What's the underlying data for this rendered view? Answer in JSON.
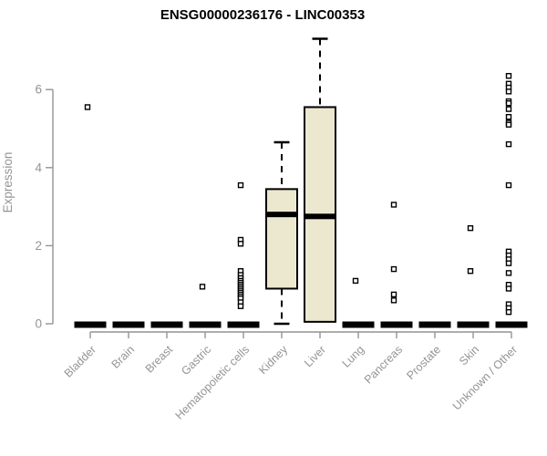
{
  "chart_data": {
    "type": "box",
    "title": "ENSG00000236176 - LINC00353",
    "ylabel": "Expression",
    "xlabel": "",
    "yticks": [
      0,
      2,
      4,
      6
    ],
    "ylim": [
      0,
      7.5
    ],
    "grid": false,
    "legend": null,
    "categories": [
      "Bladder",
      "Brain",
      "Breast",
      "Gastric",
      "Hematopoietic cells",
      "Kidney",
      "Liver",
      "Lung",
      "Pancreas",
      "Prostate",
      "Skin",
      "Unknown / Other"
    ],
    "boxes": [
      {
        "label": "Bladder",
        "collapsed": true,
        "median": 0,
        "outliers": [
          5.55
        ]
      },
      {
        "label": "Brain",
        "collapsed": true,
        "median": 0,
        "outliers": []
      },
      {
        "label": "Breast",
        "collapsed": true,
        "median": 0,
        "outliers": []
      },
      {
        "label": "Gastric",
        "collapsed": true,
        "median": 0,
        "outliers": [
          0.95
        ]
      },
      {
        "label": "Hematopoietic cells",
        "collapsed": true,
        "median": 0,
        "outliers": [
          3.55,
          2.15,
          2.05,
          1.35,
          1.25,
          1.17,
          1.1,
          1.05,
          1.0,
          0.95,
          0.9,
          0.85,
          0.8,
          0.75,
          0.7,
          0.65,
          0.55,
          0.45
        ]
      },
      {
        "label": "Kidney",
        "collapsed": false,
        "q1": 0.9,
        "median": 2.8,
        "q3": 3.45,
        "whisker_low": 0,
        "whisker_high": 4.65,
        "outliers": []
      },
      {
        "label": "Liver",
        "collapsed": false,
        "q1": 0.05,
        "median": 2.75,
        "q3": 5.55,
        "whisker_low": null,
        "whisker_high": 7.3,
        "outliers": []
      },
      {
        "label": "Lung",
        "collapsed": true,
        "median": 0,
        "outliers": [
          1.1
        ]
      },
      {
        "label": "Pancreas",
        "collapsed": true,
        "median": 0,
        "outliers": [
          3.05,
          1.4,
          0.75,
          0.6
        ]
      },
      {
        "label": "Prostate",
        "collapsed": true,
        "median": 0,
        "outliers": []
      },
      {
        "label": "Skin",
        "collapsed": true,
        "median": 0,
        "outliers": [
          2.45,
          1.35
        ]
      },
      {
        "label": "Unknown / Other",
        "collapsed": true,
        "median": 0,
        "outliers": [
          6.35,
          6.15,
          6.05,
          5.95,
          5.7,
          5.65,
          5.5,
          5.3,
          5.15,
          5.1,
          4.6,
          3.55,
          1.85,
          1.75,
          1.65,
          1.55,
          1.3,
          1.0,
          0.9,
          0.5,
          0.4,
          0.3
        ]
      }
    ],
    "colors": {
      "title": "#000000",
      "axis": "#949494",
      "tick_labels": "#949494",
      "box_fill": "#ece7cf",
      "box_stroke": "#000000",
      "median": "#000000",
      "outlier": "#000000"
    }
  }
}
